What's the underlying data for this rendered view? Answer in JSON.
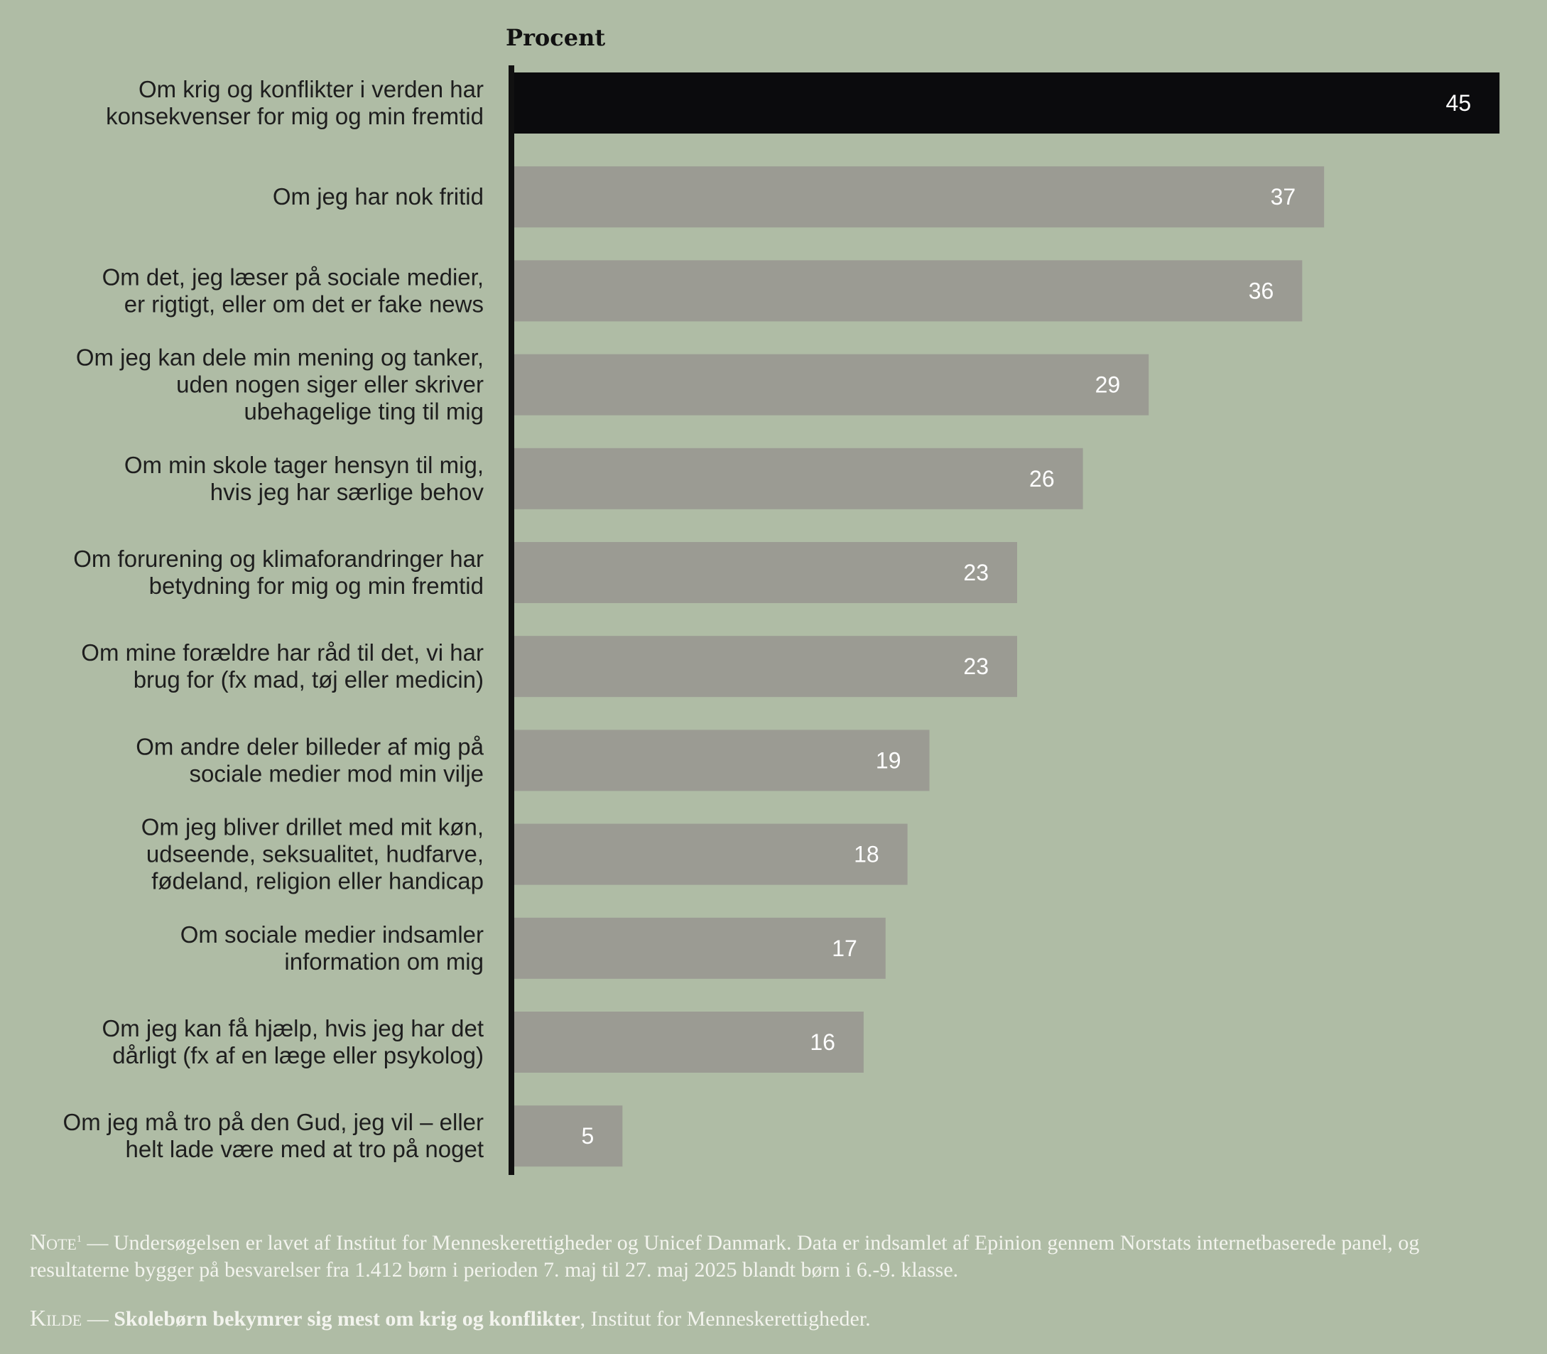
{
  "chart_data": {
    "type": "bar",
    "orientation": "horizontal",
    "unit_label": "Procent",
    "categories": [
      [
        "Om krig og konflikter i verden har",
        "konsekvenser for mig og min fremtid"
      ],
      [
        "Om jeg har nok fritid"
      ],
      [
        "Om det, jeg læser på sociale medier,",
        "er rigtigt, eller om det er fake news"
      ],
      [
        "Om jeg kan dele min mening og tanker,",
        "uden nogen siger eller skriver",
        "ubehagelige ting til mig"
      ],
      [
        "Om min skole tager hensyn til mig,",
        "hvis jeg har særlige behov"
      ],
      [
        "Om forurening og klimaforandringer har",
        "betydning for mig og min fremtid"
      ],
      [
        "Om mine forældre har råd til det, vi har",
        "brug for (fx mad, tøj eller medicin)"
      ],
      [
        "Om andre deler billeder af mig på",
        "sociale medier mod min vilje"
      ],
      [
        "Om jeg bliver drillet med mit køn,",
        "udseende, seksualitet, hudfarve,",
        "fødeland, religion eller handicap"
      ],
      [
        "Om sociale medier indsamler",
        "information om mig"
      ],
      [
        "Om jeg kan få hjælp, hvis jeg har det",
        "dårligt (fx af en læge eller psykolog)"
      ],
      [
        "Om jeg må tro på den Gud, jeg vil – eller",
        "helt lade være med at tro på noget"
      ]
    ],
    "values": [
      45,
      37,
      36,
      29,
      26,
      23,
      23,
      19,
      18,
      17,
      16,
      5
    ],
    "highlight_index": 0,
    "colors": {
      "highlight": "#0b0b0d",
      "bar": "#9b9b93",
      "axis": "#111111",
      "background": "#afbca5"
    }
  },
  "footer": {
    "note_label": "Note",
    "note_sup": "1",
    "note_text": " — Undersøgelsen er lavet af Institut for Menneskerettigheder og Unicef Danmark. Data er indsamlet af Epinion gennem Norstats internetbaserede panel, og resultaterne bygger på besvarelser fra 1.412 børn i perioden 7. maj til 27. maj 2025 blandt børn i 6.-9. klasse.",
    "source_label": "Kilde",
    "source_sep": " — ",
    "source_title": "Skolebørn bekymrer sig mest om krig og konflikter",
    "source_rest": ", Institut for Menneskerettigheder."
  }
}
